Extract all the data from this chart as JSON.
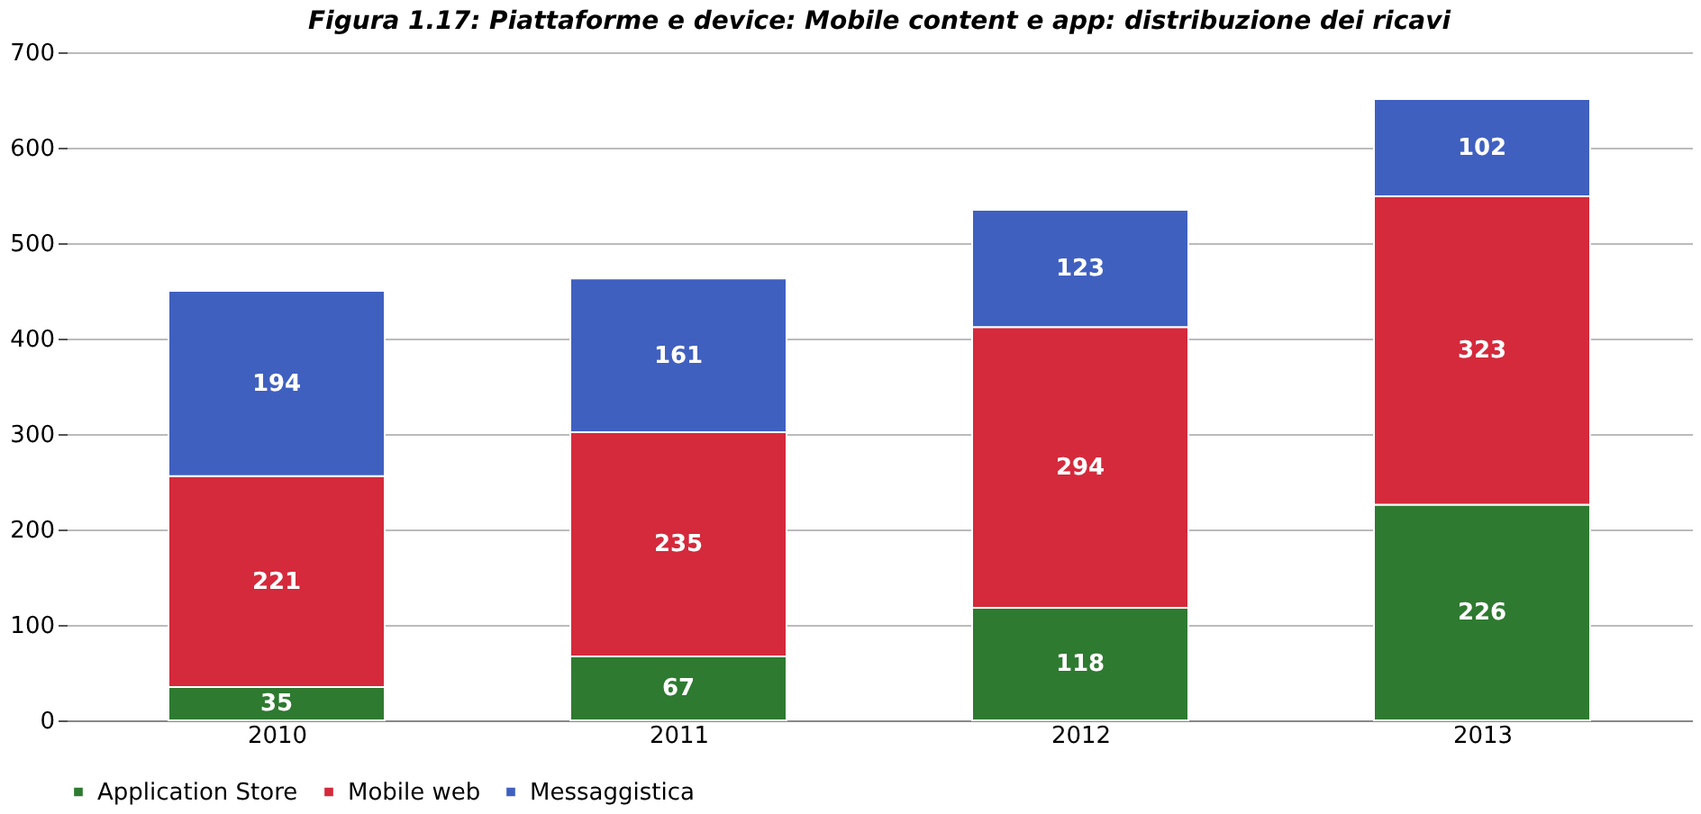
{
  "chart_data": {
    "type": "bar",
    "stacked": true,
    "title": "Figura 1.17: Piattaforme e device: Mobile content e app: distribuzione dei ricavi",
    "categories": [
      "2010",
      "2011",
      "2012",
      "2013"
    ],
    "series": [
      {
        "name": "Application Store",
        "color": "#2e7a30",
        "values": [
          35,
          67,
          118,
          226
        ]
      },
      {
        "name": "Mobile web",
        "color": "#d42a3c",
        "values": [
          221,
          235,
          294,
          323
        ]
      },
      {
        "name": "Messaggistica",
        "color": "#4060c0",
        "values": [
          194,
          161,
          123,
          102
        ]
      }
    ],
    "ylim": [
      0,
      700
    ],
    "yticks": [
      0,
      100,
      200,
      300,
      400,
      500,
      600,
      700
    ],
    "grid": "y",
    "legend": "bottom",
    "data_labels": true
  }
}
